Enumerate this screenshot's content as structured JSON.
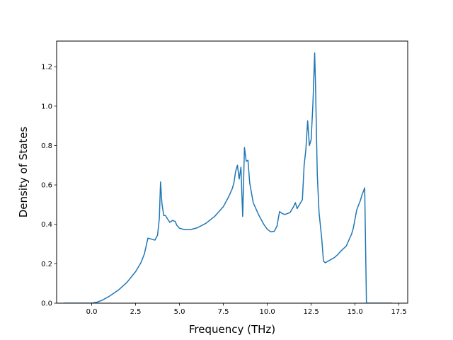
{
  "chart_data": {
    "type": "line",
    "title": "",
    "xlabel": "Frequency (THz)",
    "ylabel": "Density of States",
    "xlim": [
      -2.0,
      18.0
    ],
    "ylim": [
      0.0,
      1.33
    ],
    "xticks": [
      0.0,
      2.5,
      5.0,
      7.5,
      10.0,
      12.5,
      15.0,
      17.5
    ],
    "xtick_labels": [
      "0.0",
      "2.5",
      "5.0",
      "7.5",
      "10.0",
      "12.5",
      "15.0",
      "17.5"
    ],
    "yticks": [
      0.0,
      0.2,
      0.4,
      0.6,
      0.8,
      1.0,
      1.2
    ],
    "ytick_labels": [
      "0.0",
      "0.2",
      "0.4",
      "0.6",
      "0.8",
      "1.0",
      "1.2"
    ],
    "grid": false,
    "legend": "none",
    "series": [
      {
        "color": "#1f77b4",
        "x": [
          -1.6,
          -1.0,
          -0.5,
          0.0,
          0.3,
          0.6,
          1.0,
          1.5,
          2.0,
          2.5,
          2.8,
          3.0,
          3.1,
          3.2,
          3.4,
          3.6,
          3.75,
          3.85,
          3.92,
          4.0,
          4.1,
          4.2,
          4.3,
          4.45,
          4.6,
          4.75,
          4.85,
          5.0,
          5.3,
          5.6,
          6.0,
          6.5,
          7.0,
          7.5,
          7.8,
          8.0,
          8.1,
          8.2,
          8.3,
          8.4,
          8.5,
          8.6,
          8.7,
          8.8,
          8.9,
          9.0,
          9.2,
          9.5,
          9.8,
          10.0,
          10.2,
          10.4,
          10.55,
          10.7,
          10.85,
          11.0,
          11.3,
          11.5,
          11.6,
          11.7,
          11.8,
          12.0,
          12.1,
          12.2,
          12.3,
          12.4,
          12.5,
          12.6,
          12.7,
          12.75,
          12.85,
          12.95,
          13.1,
          13.2,
          13.3,
          13.5,
          13.8,
          14.0,
          14.2,
          14.5,
          14.8,
          14.9,
          15.1,
          15.3,
          15.4,
          15.55,
          15.65,
          16.0,
          17.1
        ],
        "y": [
          0.0,
          0.0,
          0.0,
          0.0,
          0.005,
          0.015,
          0.035,
          0.065,
          0.105,
          0.16,
          0.205,
          0.25,
          0.29,
          0.33,
          0.325,
          0.32,
          0.345,
          0.43,
          0.615,
          0.505,
          0.445,
          0.445,
          0.43,
          0.41,
          0.42,
          0.415,
          0.395,
          0.38,
          0.373,
          0.373,
          0.382,
          0.405,
          0.44,
          0.49,
          0.54,
          0.58,
          0.61,
          0.67,
          0.7,
          0.63,
          0.69,
          0.44,
          0.79,
          0.72,
          0.725,
          0.61,
          0.51,
          0.45,
          0.4,
          0.375,
          0.362,
          0.365,
          0.39,
          0.465,
          0.455,
          0.45,
          0.46,
          0.49,
          0.51,
          0.48,
          0.495,
          0.525,
          0.7,
          0.78,
          0.925,
          0.8,
          0.83,
          1.01,
          1.27,
          1.1,
          0.65,
          0.46,
          0.33,
          0.215,
          0.205,
          0.215,
          0.23,
          0.245,
          0.265,
          0.29,
          0.35,
          0.38,
          0.475,
          0.52,
          0.55,
          0.585,
          0.0,
          0.0,
          0.0
        ]
      }
    ]
  }
}
